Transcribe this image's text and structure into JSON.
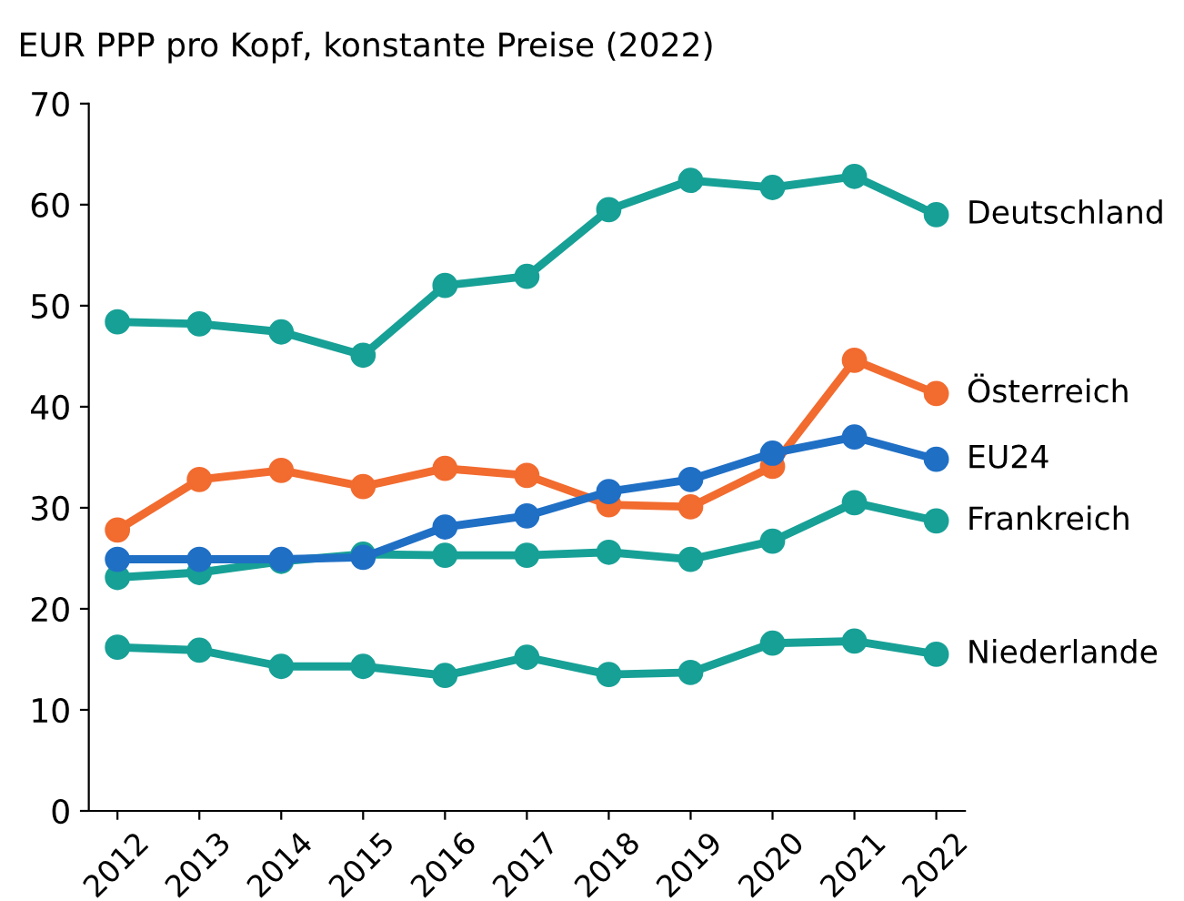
{
  "chart_data": {
    "type": "line",
    "title": "EUR PPP pro Kopf, konstante Preise (2022)",
    "categories": [
      "2012",
      "2013",
      "2014",
      "2015",
      "2016",
      "2017",
      "2018",
      "2019",
      "2020",
      "2021",
      "2022"
    ],
    "series": [
      {
        "name": "Deutschland",
        "color": "#17a096",
        "values": [
          48.4,
          48.2,
          47.4,
          45.1,
          52.0,
          52.9,
          59.5,
          62.4,
          61.7,
          62.8,
          59.0
        ]
      },
      {
        "name": "Österreich",
        "color": "#f26b2f",
        "values": [
          27.8,
          32.8,
          33.7,
          32.1,
          33.9,
          33.2,
          30.3,
          30.1,
          34.1,
          44.6,
          41.3
        ]
      },
      {
        "name": "Frankreich",
        "color": "#17a096",
        "values": [
          23.1,
          23.6,
          24.7,
          25.4,
          25.3,
          25.3,
          25.6,
          24.9,
          26.7,
          30.5,
          28.7
        ]
      },
      {
        "name": "Niederlande",
        "color": "#17a096",
        "values": [
          16.2,
          15.9,
          14.3,
          14.3,
          13.4,
          15.2,
          13.5,
          13.7,
          16.6,
          16.8,
          15.5
        ]
      },
      {
        "name": "EU24",
        "color": "#1f6fc5",
        "values": [
          24.9,
          24.9,
          24.9,
          25.1,
          28.1,
          29.2,
          31.6,
          32.8,
          35.4,
          37.0,
          34.8
        ]
      }
    ],
    "ylim": [
      0,
      70
    ],
    "yticks": [
      0,
      10,
      20,
      30,
      40,
      50,
      60,
      70
    ],
    "grid": false,
    "legend": false,
    "marker": "circle",
    "line_style": "solid"
  }
}
